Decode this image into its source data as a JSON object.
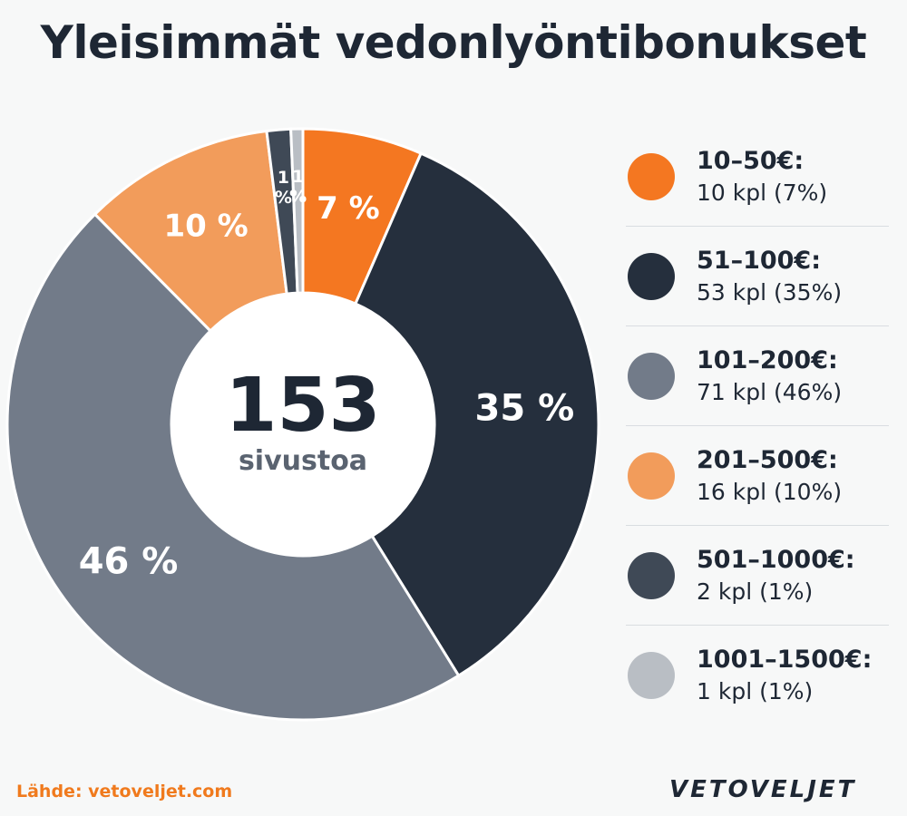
{
  "title": "Yleisimmät vedonlyöntibonukset",
  "center": {
    "value": "153",
    "label": "sivustoa"
  },
  "source": "Lähde: vetoveljet.com",
  "logo": "VETOVELJET",
  "chart_data": {
    "type": "pie",
    "title": "Yleisimmät vedonlyöntibonukset",
    "total": 153,
    "slices": [
      {
        "label": "10–50€:",
        "count_text": "10 kpl (7%)",
        "count": 10,
        "percent": 7,
        "slice_label": "7 %",
        "color": "#f47721"
      },
      {
        "label": "51–100€:",
        "count_text": "53 kpl (35%)",
        "count": 53,
        "percent": 35,
        "slice_label": "35 %",
        "color": "#252f3d"
      },
      {
        "label": "101–200€:",
        "count_text": "71 kpl (46%)",
        "count": 71,
        "percent": 46,
        "slice_label": "46 %",
        "color": "#727b89"
      },
      {
        "label": "201–500€:",
        "count_text": "16 kpl (10%)",
        "count": 16,
        "percent": 10,
        "slice_label": "10 %",
        "color": "#f29c5b"
      },
      {
        "label": "501–1000€:",
        "count_text": "2 kpl (1%)",
        "count": 2,
        "percent": 1,
        "slice_label": "1 %",
        "color": "#3f4956"
      },
      {
        "label": "1001–1500€:",
        "count_text": "1 kpl (1%)",
        "count": 1,
        "percent": 1,
        "slice_label": "1 %",
        "color": "#b9bec4"
      }
    ]
  }
}
